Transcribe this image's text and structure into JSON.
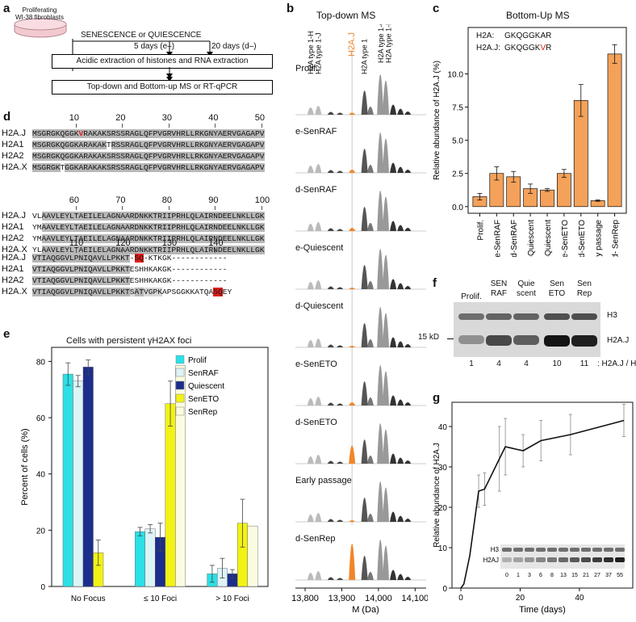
{
  "panel_a": {
    "label": "a",
    "dish_label": "Proliferating\nWI-38 fibroblasts",
    "condition": "SENESCENCE or QUIESCENCE",
    "early": "5 days (e–)",
    "late": "20 days (d–)",
    "step1": "Acidic extraction of histones and RNA extraction",
    "step2": "Top-down and Bottom-up MS or RT-qPCR"
  },
  "panel_b": {
    "label": "b",
    "title": "Top-down MS",
    "peak_labels": [
      "H2A type 1-H",
      "H2A type 1-J",
      "H2A.J",
      "H2A type 1",
      "H2A type 1-C",
      "H2A type 1-B/E"
    ],
    "samples": [
      "Prolif.",
      "e-SenRAF",
      "d-SenRAF",
      "e-Quiescent",
      "d-Quiescent",
      "e-SenETO",
      "d-SenETO",
      "Early passage",
      "d-SenRep"
    ],
    "xticks": [
      "13,800",
      "13,900",
      "14,000",
      "14,100"
    ],
    "xlabel": "M (Da)",
    "orange": "#f0862b"
  },
  "panel_d": {
    "label": "d",
    "names": [
      "H2A.J",
      "H2A1",
      "H2A2",
      "H2A.X"
    ],
    "block1_ticks": [
      "10",
      "20",
      "30",
      "40",
      "50"
    ],
    "block1": [
      "MSGRGKQGGKVRAKAKSRSSRAGLQFPVGRVHRLLRKGNYAERVGAGAPV",
      "MSGRGKQGGKARAKAKTRSSRAGLQFPVGRVHRLLRKGNYAERVGAGAPV",
      "MSGRGKQGGKARAKAKSRSSRAGLQFPVGRVHRLLRKGNYAERVGAGAPV",
      "MSGRGKTGGKARAKAKSRSSRAGLQFPVGRVHRLLRKGNYAERVGAGAPV"
    ],
    "block2_ticks": [
      "60",
      "70",
      "80",
      "90",
      "100"
    ],
    "block2": [
      "VLAAVLEYLTAEILELAGNAARDNKKTRIIPRHLQLAIRNDEELNKLLGK",
      "YMAAVLEYLTAEILELAGNAARDNKKTRIIPRHLQLAIRNDEELNKLLGK",
      "YMAAVLEYLTAEILELAGNAARDNKKTRIIPRHLQLAIRNDEELNKLLGK",
      "YLAAVLEYLTAEILELAGNAARDNKKTRIIPRHLQLAIRNDEELNKLLGK"
    ],
    "block3_ticks": [
      "110",
      "120",
      "130",
      "140"
    ],
    "block3": [
      "VTIAQGGVLPNIQAVLLPKKT-SQ-KTKGK------------",
      "VTIAQGGVLPNIQAVLLPKKTESHHKAKGK------------",
      "VTIAQGGVLPNIQAVLLPKKTESHHKAKGK------------",
      "VTIAQGGVLPNIQAVLLPKKTSATVGPKAPSGGKKATQASQEY"
    ]
  },
  "panel_c": {
    "label": "c",
    "title": "Bottom-Up MS",
    "seq_h2a_label": "H2A:",
    "seq_h2a": "GKQGGKAR",
    "seq_h2aj_label": "H2A.J:",
    "seq_h2aj_pre": "GKQGGK",
    "seq_h2aj_mut": "V",
    "seq_h2aj_post": "R"
  },
  "panel_e": {
    "label": "e",
    "title": "Cells with persistent γH2AX foci"
  },
  "panel_f": {
    "label": "f",
    "lanes": [
      "Prolif.",
      "SEN\nRAF",
      "Quie\nscent",
      "Sen\nETO",
      "Sen\nRep"
    ],
    "marker": "15 kD",
    "band_labels": [
      "H3",
      "H2A.J"
    ],
    "ratios": [
      "1",
      "4",
      "4",
      "10",
      "11"
    ],
    "ratio_label": ": H2A.J / H3"
  },
  "panel_g": {
    "label": "g",
    "inset_labels": [
      "H3",
      "H2AJ"
    ],
    "inset_days": [
      "0",
      "1",
      "3",
      "6",
      "8",
      "13",
      "15",
      "21",
      "27",
      "37",
      "55"
    ]
  },
  "chart_data": [
    {
      "type": "bar",
      "title": "Bottom-Up MS",
      "categories": [
        "Prolif.",
        "e-SenRAF",
        "d-SenRAF",
        "e-Quiescent",
        "d-Quiescent",
        "e-SenETO",
        "d-SenETO",
        "Early passage",
        "d- SenRep"
      ],
      "values": [
        0.75,
        2.5,
        2.25,
        1.35,
        1.25,
        2.5,
        8.0,
        0.45,
        11.5
      ],
      "errors": [
        0.25,
        0.5,
        0.4,
        0.35,
        0.1,
        0.3,
        1.2,
        0.05,
        0.7
      ],
      "ylabel": "Relative abundance of H2A.J (%)",
      "ylim": [
        -0.5,
        13.5
      ],
      "yticks": [
        0.0,
        2.5,
        5.0,
        7.5,
        10.0
      ],
      "ytick_labels": [
        "0.0",
        "2.5",
        "5.0",
        "7.5",
        "10.0"
      ],
      "color": "#f4a15a"
    },
    {
      "type": "bar",
      "title": "Cells with persistent γH2AX foci",
      "categories": [
        "No Focus",
        "≤ 10 Foci",
        "> 10 Foci"
      ],
      "series": [
        {
          "name": "Prolif",
          "color": "#2be0e6",
          "values": [
            75.5,
            19.5,
            4.5
          ],
          "errors": [
            4,
            1.5,
            3
          ]
        },
        {
          "name": "SenRAF",
          "color": "#ddf4f7",
          "values": [
            73,
            20.5,
            6.5
          ],
          "errors": [
            2,
            1.5,
            3.5
          ]
        },
        {
          "name": "Quiescent",
          "color": "#1c2d8c",
          "values": [
            78,
            17.5,
            4.5
          ],
          "errors": [
            2.5,
            5,
            1.5
          ]
        },
        {
          "name": "SenETO",
          "color": "#f2f215",
          "values": [
            12,
            65,
            22.5
          ],
          "errors": [
            4.5,
            8,
            8.5
          ]
        },
        {
          "name": "SenRep",
          "color": "#fbfbe0",
          "values": [
            0,
            78.5,
            21.5
          ],
          "errors": [
            0,
            0,
            0
          ]
        }
      ],
      "ylabel": "Percent of cells (%)",
      "ylim": [
        0,
        85
      ],
      "yticks": [
        0,
        20,
        40,
        60,
        80
      ],
      "legend": "top-right"
    },
    {
      "type": "line",
      "x": [
        0,
        1,
        3,
        6,
        8,
        13,
        15,
        21,
        27,
        37,
        55
      ],
      "y": [
        0,
        1,
        8,
        24,
        24.5,
        32,
        35,
        34,
        36.5,
        38,
        41.5
      ],
      "errors": [
        0,
        0,
        0,
        4,
        4,
        8,
        7,
        4,
        5,
        5,
        4
      ],
      "xlabel": "Time (days)",
      "ylabel": "Relative abundance of H2A.J",
      "xlim": [
        -3,
        58
      ],
      "ylim": [
        0,
        46
      ],
      "xticks": [
        0,
        20,
        40
      ],
      "yticks": [
        0,
        10,
        20,
        30,
        40
      ]
    }
  ]
}
